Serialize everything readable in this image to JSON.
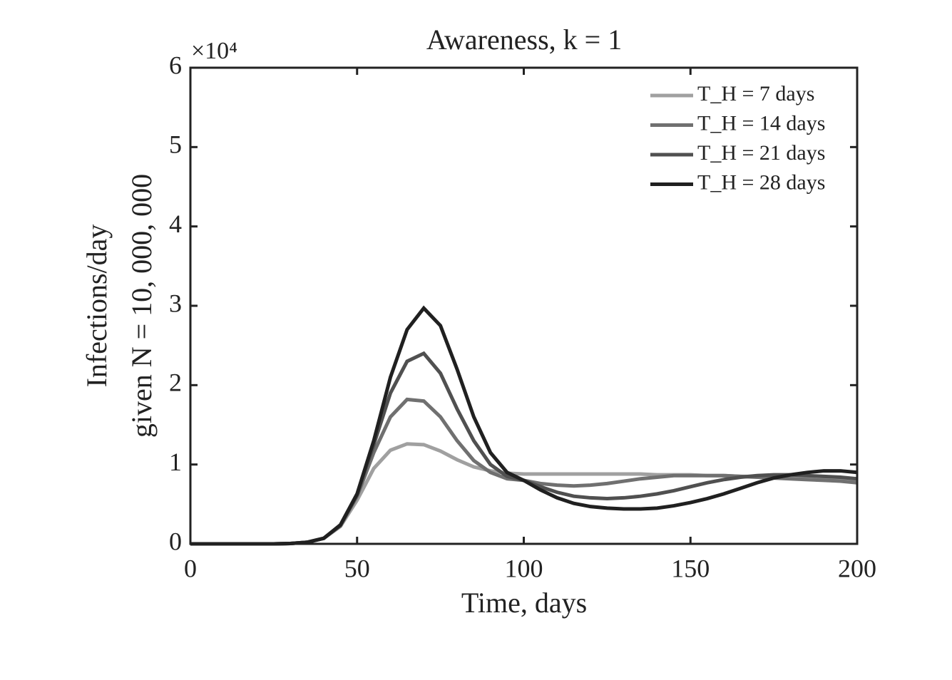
{
  "chart_data": {
    "type": "line",
    "title": "Awareness, k = 1",
    "x_label": "Time, days",
    "y_label": [
      "Infections/day",
      "given N = 10, 000, 000"
    ],
    "y_multiplier": "×10⁴",
    "x": [
      0,
      5,
      10,
      15,
      20,
      25,
      30,
      35,
      40,
      45,
      50,
      55,
      60,
      65,
      70,
      75,
      80,
      85,
      90,
      95,
      100,
      105,
      110,
      115,
      120,
      125,
      130,
      135,
      140,
      145,
      150,
      155,
      160,
      165,
      170,
      175,
      180,
      185,
      190,
      195,
      200
    ],
    "xlim": [
      0,
      200
    ],
    "xticks": [
      0,
      50,
      100,
      150,
      200
    ],
    "ylim": [
      0,
      6
    ],
    "yticks": [
      0,
      1,
      2,
      3,
      4,
      5,
      6
    ],
    "legend": "top-right",
    "series": [
      {
        "name": "T_H = 7 days",
        "color": "#a0a0a0",
        "values": [
          0,
          0,
          0,
          0,
          0,
          0,
          0.005,
          0.02,
          0.07,
          0.22,
          0.55,
          0.95,
          1.18,
          1.26,
          1.25,
          1.17,
          1.06,
          0.97,
          0.92,
          0.89,
          0.88,
          0.88,
          0.88,
          0.88,
          0.88,
          0.88,
          0.88,
          0.88,
          0.87,
          0.87,
          0.87,
          0.86,
          0.86,
          0.85,
          0.85,
          0.84,
          0.83,
          0.82,
          0.81,
          0.8,
          0.78
        ]
      },
      {
        "name": "T_H = 14 days",
        "color": "#707070",
        "values": [
          0,
          0,
          0,
          0,
          0,
          0,
          0.005,
          0.02,
          0.07,
          0.23,
          0.6,
          1.15,
          1.6,
          1.82,
          1.8,
          1.6,
          1.3,
          1.05,
          0.9,
          0.82,
          0.8,
          0.76,
          0.74,
          0.73,
          0.74,
          0.76,
          0.79,
          0.82,
          0.84,
          0.86,
          0.86,
          0.86,
          0.86,
          0.85,
          0.84,
          0.83,
          0.82,
          0.81,
          0.8,
          0.79,
          0.77
        ]
      },
      {
        "name": "T_H = 21 days",
        "color": "#505050",
        "values": [
          0,
          0,
          0,
          0,
          0,
          0,
          0.005,
          0.02,
          0.07,
          0.23,
          0.62,
          1.25,
          1.9,
          2.3,
          2.4,
          2.15,
          1.7,
          1.3,
          1.0,
          0.85,
          0.8,
          0.72,
          0.65,
          0.6,
          0.58,
          0.57,
          0.58,
          0.6,
          0.63,
          0.67,
          0.72,
          0.77,
          0.81,
          0.84,
          0.86,
          0.87,
          0.87,
          0.86,
          0.85,
          0.84,
          0.82
        ]
      },
      {
        "name": "T_H = 28 days",
        "color": "#202020",
        "values": [
          0,
          0,
          0,
          0,
          0,
          0,
          0.005,
          0.02,
          0.07,
          0.24,
          0.63,
          1.3,
          2.1,
          2.7,
          2.97,
          2.75,
          2.2,
          1.6,
          1.15,
          0.9,
          0.8,
          0.68,
          0.58,
          0.51,
          0.47,
          0.45,
          0.44,
          0.44,
          0.45,
          0.48,
          0.52,
          0.57,
          0.63,
          0.7,
          0.77,
          0.83,
          0.87,
          0.9,
          0.92,
          0.92,
          0.9
        ]
      }
    ]
  }
}
